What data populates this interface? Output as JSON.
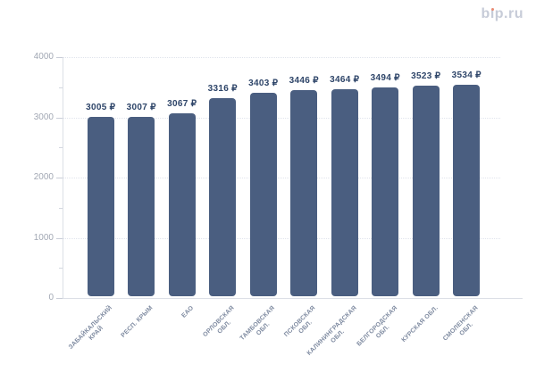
{
  "page": {
    "background": "#ffffff"
  },
  "logo": {
    "text": "bip.ru",
    "color": "#c7ccd8",
    "dot_color": "#e98a72"
  },
  "chart_data": {
    "type": "bar",
    "title": "",
    "unit": "₽",
    "legend": "none",
    "grid": "dotted horizontal lines at major y ticks",
    "categories": [
      "ЗАБАЙКАЛЬСКИЙ КРАЙ",
      "РЕСП. КРЫМ",
      "ЕАО",
      "ОРЛОВСКАЯ ОБЛ.",
      "ТАМБОВСКАЯ ОБЛ.",
      "ПСКОВСКАЯ ОБЛ.",
      "КАЛИНИНГРАДСКАЯ ОБЛ.",
      "БЕЛГОРОДСКАЯ ОБЛ.",
      "КУРСКАЯ ОБЛ.",
      "СМОЛЕНСКАЯ ОБЛ."
    ],
    "category_lines": [
      [
        "ЗАБАЙКАЛЬСКИЙ",
        "КРАЙ"
      ],
      [
        "РЕСП. КРЫМ"
      ],
      [
        "ЕАО"
      ],
      [
        "ОРЛОВСКАЯ",
        "ОБЛ."
      ],
      [
        "ТАМБОВСКАЯ",
        "ОБЛ."
      ],
      [
        "ПСКОВСКАЯ",
        "ОБЛ."
      ],
      [
        "КАЛИНИНГРАДСКАЯ",
        "ОБЛ."
      ],
      [
        "БЕЛГОРОДСКАЯ",
        "ОБЛ."
      ],
      [
        "КУРСКАЯ ОБЛ."
      ],
      [
        "СМОЛЕНСКАЯ",
        "ОБЛ."
      ]
    ],
    "values": [
      3005,
      3007,
      3067,
      3316,
      3403,
      3446,
      3464,
      3494,
      3523,
      3534
    ],
    "value_labels": [
      "3005 ₽",
      "3007 ₽",
      "3067 ₽",
      "3316 ₽",
      "3403 ₽",
      "3446 ₽",
      "3464 ₽",
      "3494 ₽",
      "3523 ₽",
      "3534 ₽"
    ],
    "ylim": [
      0,
      4000
    ],
    "yticks": [
      0,
      1000,
      2000,
      3000,
      4000
    ],
    "minor_yticks": [
      500,
      1500,
      2500,
      3500
    ],
    "bar_color": "#4a5e80",
    "value_label_color": "#2e4569",
    "axis_label_color": "#a2a8b4",
    "category_label_color": "#7e8aa0"
  }
}
